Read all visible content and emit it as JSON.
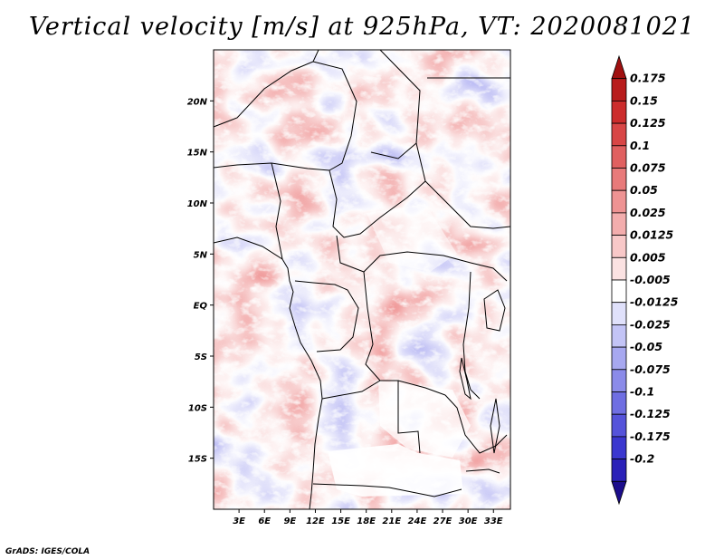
{
  "title": "Vertical velocity [m/s] at 925hPa, VT: 2020081021",
  "footer": "GrADS: IGES/COLA",
  "map": {
    "lat_labels": [
      "20N",
      "15N",
      "10N",
      "5N",
      "EQ",
      "5S",
      "10S",
      "15S"
    ],
    "lat_values": [
      20,
      15,
      10,
      5,
      0,
      -5,
      -10,
      -15
    ],
    "lon_labels": [
      "3E",
      "6E",
      "9E",
      "12E",
      "15E",
      "18E",
      "21E",
      "24E",
      "27E",
      "30E",
      "33E"
    ],
    "lon_values": [
      3,
      6,
      9,
      12,
      15,
      18,
      21,
      24,
      27,
      30,
      33
    ],
    "lon_range": [
      0,
      35
    ],
    "lat_range": [
      -20,
      25
    ],
    "lat_aspect": 1.15
  },
  "colorbar": {
    "colors": [
      "#1c0d8c",
      "#2a20b8",
      "#3b37cf",
      "#5553da",
      "#6f6ee2",
      "#8b8be9",
      "#a7a8f0",
      "#c3c4f6",
      "#e0e1fb",
      "#ffffff",
      "#fbe2e2",
      "#f8c8c8",
      "#f3adad",
      "#ee9393",
      "#e87a7a",
      "#e06060",
      "#d84646",
      "#cc2c2c",
      "#b81c1c",
      "#a01010"
    ],
    "labels": [
      "0.175",
      "0.15",
      "0.125",
      "0.1",
      "0.075",
      "0.05",
      "0.025",
      "0.0125",
      "0.005",
      "-0.005",
      "-0.0125",
      "-0.025",
      "-0.05",
      "-0.075",
      "-0.1",
      "-0.125",
      "-0.175",
      "-0.2"
    ]
  }
}
